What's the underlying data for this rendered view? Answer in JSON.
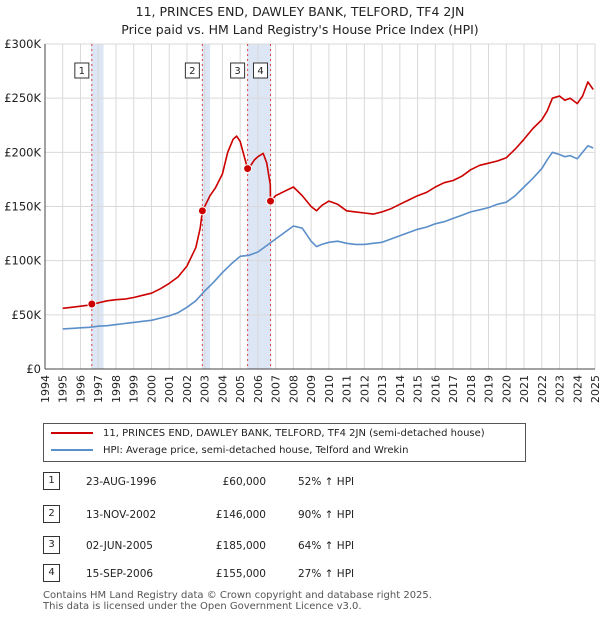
{
  "title": {
    "line1": "11, PRINCES END, DAWLEY BANK, TELFORD, TF4 2JN",
    "line2": "Price paid vs. HM Land Registry's House Price Index (HPI)"
  },
  "colors": {
    "property": "#cc0000",
    "hpi": "#5b8fc9",
    "shade": "#dde6f4",
    "grid": "#d9d9d9",
    "vline": "#dd4444"
  },
  "chart_data": {
    "type": "line",
    "title": "Price paid vs. HM Land Registry's House Price Index (HPI)",
    "xlabel": "",
    "ylabel": "",
    "xlim": [
      1994,
      2025
    ],
    "ylim": [
      0,
      300000
    ],
    "y_ticks": [
      {
        "value": 0,
        "label": "£0"
      },
      {
        "value": 50000,
        "label": "£50K"
      },
      {
        "value": 100000,
        "label": "£100K"
      },
      {
        "value": 150000,
        "label": "£150K"
      },
      {
        "value": 200000,
        "label": "£200K"
      },
      {
        "value": 250000,
        "label": "£250K"
      },
      {
        "value": 300000,
        "label": "£300K"
      }
    ],
    "x_ticks": [
      "1994",
      "1995",
      "1996",
      "1997",
      "1998",
      "1999",
      "2000",
      "2001",
      "2002",
      "2003",
      "2004",
      "2005",
      "2006",
      "2007",
      "2008",
      "2009",
      "2010",
      "2011",
      "2012",
      "2013",
      "2014",
      "2015",
      "2016",
      "2017",
      "2018",
      "2019",
      "2020",
      "2021",
      "2022",
      "2023",
      "2024",
      "2025"
    ],
    "shaded_ranges": [
      [
        1996.6,
        1997.3
      ],
      [
        2002.85,
        2003.3
      ],
      [
        2005.4,
        2006.75
      ]
    ],
    "series": [
      {
        "name": "11, PRINCES END, DAWLEY BANK, TELFORD, TF4 2JN (semi-detached house)",
        "color": "#cc0000",
        "x": [
          1995.0,
          1995.5,
          1996.0,
          1996.5,
          1996.64,
          1997.0,
          1997.5,
          1998.0,
          1998.5,
          1999.0,
          1999.5,
          2000.0,
          2000.5,
          2001.0,
          2001.5,
          2002.0,
          2002.5,
          2002.75,
          2002.87,
          2003.0,
          2003.3,
          2003.6,
          2004.0,
          2004.3,
          2004.6,
          2004.8,
          2005.0,
          2005.2,
          2005.42,
          2005.6,
          2005.8,
          2006.0,
          2006.3,
          2006.5,
          2006.7,
          2006.71,
          2007.0,
          2007.5,
          2008.0,
          2008.5,
          2009.0,
          2009.3,
          2009.6,
          2010.0,
          2010.5,
          2011.0,
          2011.5,
          2012.0,
          2012.5,
          2013.0,
          2013.5,
          2014.0,
          2014.5,
          2015.0,
          2015.5,
          2016.0,
          2016.5,
          2017.0,
          2017.5,
          2018.0,
          2018.5,
          2019.0,
          2019.5,
          2020.0,
          2020.5,
          2021.0,
          2021.5,
          2022.0,
          2022.3,
          2022.6,
          2023.0,
          2023.3,
          2023.6,
          2024.0,
          2024.3,
          2024.6,
          2024.9
        ],
        "y": [
          56000,
          57000,
          58000,
          59000,
          60000,
          61000,
          63000,
          64000,
          64500,
          66000,
          68000,
          70000,
          74000,
          79000,
          85000,
          95000,
          112000,
          130000,
          146000,
          150000,
          160000,
          167000,
          180000,
          200000,
          212000,
          215000,
          210000,
          198000,
          185000,
          188000,
          193000,
          196000,
          199000,
          190000,
          170000,
          155000,
          160000,
          164000,
          168000,
          160000,
          150000,
          146000,
          151000,
          155000,
          152000,
          146000,
          145000,
          144000,
          143000,
          145000,
          148000,
          152000,
          156000,
          160000,
          163000,
          168000,
          172000,
          174000,
          178000,
          184000,
          188000,
          190000,
          192000,
          195000,
          203000,
          212000,
          222000,
          230000,
          238000,
          250000,
          252000,
          248000,
          250000,
          245000,
          252000,
          265000,
          258000
        ]
      },
      {
        "name": "HPI: Average price, semi-detached house, Telford and Wrekin",
        "color": "#5b8fc9",
        "x": [
          1995.0,
          1995.5,
          1996.0,
          1996.5,
          1997.0,
          1997.5,
          1998.0,
          1998.5,
          1999.0,
          1999.5,
          2000.0,
          2000.5,
          2001.0,
          2001.5,
          2002.0,
          2002.5,
          2003.0,
          2003.5,
          2004.0,
          2004.5,
          2005.0,
          2005.5,
          2006.0,
          2006.5,
          2007.0,
          2007.5,
          2008.0,
          2008.5,
          2009.0,
          2009.3,
          2009.6,
          2010.0,
          2010.5,
          2011.0,
          2011.5,
          2012.0,
          2012.5,
          2013.0,
          2013.5,
          2014.0,
          2014.5,
          2015.0,
          2015.5,
          2016.0,
          2016.5,
          2017.0,
          2017.5,
          2018.0,
          2018.5,
          2019.0,
          2019.5,
          2020.0,
          2020.5,
          2021.0,
          2021.5,
          2022.0,
          2022.3,
          2022.6,
          2023.0,
          2023.3,
          2023.6,
          2024.0,
          2024.3,
          2024.6,
          2024.9
        ],
        "y": [
          37000,
          37500,
          38000,
          38500,
          39500,
          40000,
          41000,
          42000,
          43000,
          44000,
          45000,
          47000,
          49000,
          52000,
          57000,
          63000,
          72000,
          80000,
          89000,
          97000,
          104000,
          105000,
          108000,
          114000,
          120000,
          126000,
          132000,
          130000,
          118000,
          113000,
          115000,
          117000,
          118000,
          116000,
          115000,
          115000,
          116000,
          117000,
          120000,
          123000,
          126000,
          129000,
          131000,
          134000,
          136000,
          139000,
          142000,
          145000,
          147000,
          149000,
          152000,
          154000,
          160000,
          168000,
          176000,
          185000,
          193000,
          200000,
          198000,
          196000,
          197000,
          194000,
          200000,
          206000,
          204000
        ]
      }
    ],
    "sales": [
      {
        "label": "1",
        "x": 1996.64,
        "y": 60000
      },
      {
        "label": "2",
        "x": 2002.87,
        "y": 146000
      },
      {
        "label": "3",
        "x": 2005.42,
        "y": 185000
      },
      {
        "label": "4",
        "x": 2006.71,
        "y": 155000
      }
    ]
  },
  "legend": {
    "property_label": "11, PRINCES END, DAWLEY BANK, TELFORD, TF4 2JN (semi-detached house)",
    "hpi_label": "HPI: Average price, semi-detached house, Telford and Wrekin"
  },
  "sales_table": [
    {
      "num": "1",
      "date": "23-AUG-1996",
      "price": "£60,000",
      "hpi": "52% ↑ HPI"
    },
    {
      "num": "2",
      "date": "13-NOV-2002",
      "price": "£146,000",
      "hpi": "90% ↑ HPI"
    },
    {
      "num": "3",
      "date": "02-JUN-2005",
      "price": "£185,000",
      "hpi": "64% ↑ HPI"
    },
    {
      "num": "4",
      "date": "15-SEP-2006",
      "price": "£155,000",
      "hpi": "27% ↑ HPI"
    }
  ],
  "footer": {
    "line1": "Contains HM Land Registry data © Crown copyright and database right 2025.",
    "line2": "This data is licensed under the Open Government Licence v3.0."
  }
}
